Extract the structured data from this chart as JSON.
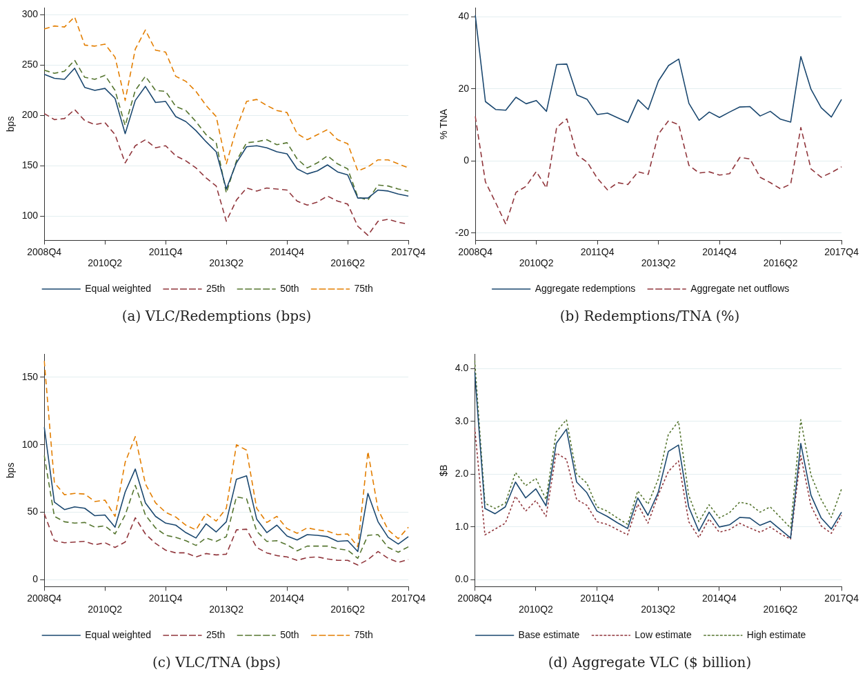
{
  "chart_data": [
    {
      "type": "line",
      "title": "(a) VLC/Redemptions (bps)",
      "ylabel": "bps",
      "categories": [
        "2008Q4",
        null,
        null,
        null,
        null,
        null,
        "2010Q2",
        null,
        null,
        null,
        null,
        null,
        "2011Q4",
        null,
        null,
        null,
        null,
        null,
        "2013Q2",
        null,
        null,
        null,
        null,
        null,
        "2014Q4",
        null,
        null,
        null,
        null,
        null,
        "2016Q2",
        null,
        null,
        null,
        null,
        null,
        "2017Q4"
      ],
      "ylim": [
        76,
        307
      ],
      "yticks": [
        100,
        150,
        200,
        250,
        300
      ],
      "grid": "y",
      "legend": "bottom",
      "marker": "none",
      "series": [
        {
          "name": "Equal weighted",
          "color": "#1a476f",
          "line_style": "solid",
          "values": [
            241,
            237,
            236,
            247,
            228,
            225,
            227,
            217,
            182,
            215,
            229,
            213,
            214,
            199,
            194,
            185,
            174,
            164,
            127,
            153,
            169,
            170,
            168,
            164,
            162,
            147,
            142,
            145,
            151,
            144,
            141,
            118,
            118,
            126,
            125,
            122,
            120
          ]
        },
        {
          "name": "25th",
          "color": "#90353b",
          "line_style": "dashed",
          "values": [
            202,
            196,
            197,
            206,
            195,
            191,
            193,
            181,
            153,
            170,
            176,
            168,
            170,
            160,
            155,
            148,
            138,
            130,
            95,
            116,
            128,
            125,
            128,
            127,
            126,
            115,
            111,
            114,
            120,
            115,
            112,
            90,
            81,
            95,
            97,
            94,
            92
          ]
        },
        {
          "name": "50th",
          "color": "#55752f",
          "line_style": "dashed",
          "values": [
            245,
            242,
            244,
            255,
            238,
            236,
            240,
            225,
            190,
            225,
            239,
            225,
            224,
            209,
            205,
            194,
            181,
            173,
            123,
            155,
            173,
            174,
            176,
            171,
            173,
            157,
            148,
            153,
            160,
            152,
            147,
            119,
            116,
            131,
            130,
            127,
            125
          ]
        },
        {
          "name": "75th",
          "color": "#e37e00",
          "line_style": "dashed",
          "values": [
            286,
            289,
            288,
            298,
            270,
            269,
            271,
            258,
            215,
            266,
            285,
            265,
            263,
            239,
            234,
            224,
            210,
            199,
            152,
            187,
            214,
            216,
            210,
            205,
            203,
            182,
            176,
            181,
            186,
            176,
            172,
            145,
            149,
            156,
            156,
            152,
            148
          ]
        }
      ]
    },
    {
      "type": "line",
      "title": "(b) Redemptions/TNA (%)",
      "ylabel": "% TNA",
      "categories": [
        "2008Q4",
        null,
        null,
        null,
        null,
        null,
        "2010Q2",
        null,
        null,
        null,
        null,
        null,
        "2011Q4",
        null,
        null,
        null,
        null,
        null,
        "2013Q2",
        null,
        null,
        null,
        null,
        null,
        "2014Q4",
        null,
        null,
        null,
        null,
        null,
        "2016Q2",
        null,
        null,
        null,
        null,
        null,
        "2017Q4"
      ],
      "ylim": [
        -22,
        42.5
      ],
      "yticks": [
        -20,
        0,
        20,
        40
      ],
      "grid": "y",
      "legend": "bottom",
      "marker": "none",
      "series": [
        {
          "name": "Aggregate redemptions",
          "color": "#1a476f",
          "line_style": "solid",
          "values": [
            40.5,
            16.5,
            14.3,
            14.1,
            17.7,
            15.9,
            16.8,
            13.8,
            26.8,
            26.9,
            18.3,
            17.1,
            12.9,
            13.3,
            12.0,
            10.7,
            17.0,
            14.3,
            22.2,
            26.5,
            28.3,
            16.0,
            11.3,
            13.6,
            12.1,
            13.6,
            15.0,
            15.1,
            12.5,
            13.8,
            11.6,
            10.8,
            29.0,
            19.9,
            14.8,
            12.2,
            17.1
          ]
        },
        {
          "name": "Aggregate net outflows",
          "color": "#90353b",
          "line_style": "dashed",
          "values": [
            12.4,
            -5.8,
            -11.5,
            -17.5,
            -8.7,
            -7.0,
            -2.9,
            -7.5,
            9.3,
            11.7,
            1.7,
            -0.3,
            -4.8,
            -8.0,
            -6.0,
            -6.5,
            -3.0,
            -3.7,
            7.5,
            11.2,
            10.1,
            -1.2,
            -3.3,
            -3.0,
            -3.9,
            -3.5,
            1.0,
            0.6,
            -4.5,
            -6.0,
            -7.7,
            -6.4,
            9.3,
            -2.2,
            -4.5,
            -3.2,
            -1.6
          ]
        }
      ]
    },
    {
      "type": "line",
      "title": "(c) VLC/TNA (bps)",
      "ylabel": "bps",
      "categories": [
        "2008Q4",
        null,
        null,
        null,
        null,
        null,
        "2010Q2",
        null,
        null,
        null,
        null,
        null,
        "2011Q4",
        null,
        null,
        null,
        null,
        null,
        "2013Q2",
        null,
        null,
        null,
        null,
        null,
        "2014Q4",
        null,
        null,
        null,
        null,
        null,
        "2016Q2",
        null,
        null,
        null,
        null,
        null,
        "2017Q4"
      ],
      "ylim": [
        -5,
        167
      ],
      "yticks": [
        0,
        50,
        100,
        150
      ],
      "grid": "y",
      "legend": "bottom",
      "marker": "none",
      "series": [
        {
          "name": "Equal weighted",
          "color": "#1a476f",
          "line_style": "solid",
          "values": [
            113,
            57.5,
            52,
            54,
            53,
            47.5,
            48,
            39,
            65,
            82,
            57,
            47,
            42,
            40.5,
            35,
            31,
            41.5,
            35.5,
            43,
            74.5,
            77,
            45,
            35,
            40.5,
            32.5,
            29.5,
            33.5,
            33,
            32,
            28.5,
            29,
            21,
            64,
            43,
            31.5,
            26.5,
            32
          ]
        },
        {
          "name": "25th",
          "color": "#90353b",
          "line_style": "dashed",
          "values": [
            49,
            29,
            27.5,
            28,
            28.5,
            26,
            27.5,
            24,
            28,
            46,
            34,
            27,
            22,
            20,
            20,
            17,
            19.5,
            18.5,
            19,
            37,
            37.5,
            24,
            20,
            18,
            17,
            14.5,
            16.5,
            17,
            15.5,
            14.5,
            14.5,
            11,
            15,
            21,
            16,
            13,
            15
          ]
        },
        {
          "name": "50th",
          "color": "#55752f",
          "line_style": "dashed",
          "values": [
            92,
            47,
            43,
            42,
            42.5,
            39,
            40,
            34,
            48,
            70,
            48,
            38.5,
            33,
            31.5,
            29,
            25.5,
            31,
            28.5,
            32,
            61.5,
            60,
            36,
            28.5,
            29,
            26,
            21.5,
            25,
            25,
            25,
            23,
            22,
            16,
            33,
            33.5,
            24,
            20.5,
            24.5
          ]
        },
        {
          "name": "75th",
          "color": "#e37e00",
          "line_style": "dashed",
          "values": [
            162,
            72,
            63,
            64,
            63.5,
            58,
            59,
            47,
            87,
            106,
            71,
            57,
            50,
            46.5,
            40.5,
            37,
            49,
            43.5,
            53,
            100,
            96,
            53,
            42.5,
            47,
            38,
            34.5,
            38.5,
            37,
            36,
            33.5,
            34,
            24.5,
            95,
            52,
            37,
            30.5,
            39
          ]
        }
      ]
    },
    {
      "type": "line",
      "title": "(d) Aggregate VLC ($ billion)",
      "ylabel": "$B",
      "categories": [
        "2008Q4",
        null,
        null,
        null,
        null,
        null,
        "2010Q2",
        null,
        null,
        null,
        null,
        null,
        "2011Q4",
        null,
        null,
        null,
        null,
        null,
        "2013Q2",
        null,
        null,
        null,
        null,
        null,
        "2014Q4",
        null,
        null,
        null,
        null,
        null,
        "2016Q2",
        null,
        null,
        null,
        null,
        null,
        "2017Q4"
      ],
      "ylim": [
        -0.13,
        4.27
      ],
      "yticks": [
        {
          "value": 0,
          "label": "0.0"
        },
        {
          "value": 1,
          "label": "1.0"
        },
        {
          "value": 2,
          "label": "2.0"
        },
        {
          "value": 3,
          "label": "3.0"
        },
        {
          "value": 4,
          "label": "4.0"
        }
      ],
      "grid": "y",
      "legend": "bottom",
      "marker": "none",
      "series": [
        {
          "name": "Base estimate",
          "color": "#1a476f",
          "line_style": "solid",
          "values": [
            3.93,
            1.35,
            1.25,
            1.38,
            1.85,
            1.55,
            1.72,
            1.4,
            2.58,
            2.85,
            1.85,
            1.65,
            1.3,
            1.2,
            1.08,
            0.97,
            1.55,
            1.22,
            1.65,
            2.43,
            2.55,
            1.38,
            0.92,
            1.28,
            1.0,
            1.04,
            1.18,
            1.17,
            1.03,
            1.11,
            0.95,
            0.79,
            2.58,
            1.6,
            1.17,
            0.96,
            1.28
          ]
        },
        {
          "name": "Low estimate",
          "color": "#90353b",
          "line_style": "dotted",
          "values": [
            2.88,
            0.85,
            0.96,
            1.07,
            1.58,
            1.3,
            1.5,
            1.2,
            2.4,
            2.28,
            1.52,
            1.41,
            1.1,
            1.05,
            0.95,
            0.85,
            1.43,
            1.07,
            1.6,
            2.05,
            2.25,
            1.1,
            0.8,
            1.15,
            0.9,
            0.95,
            1.07,
            0.98,
            0.9,
            1.0,
            0.87,
            0.77,
            2.35,
            1.4,
            1.02,
            0.88,
            1.22
          ]
        },
        {
          "name": "High estimate",
          "color": "#55752f",
          "line_style": "dotted",
          "values": [
            4.15,
            1.45,
            1.35,
            1.45,
            2.03,
            1.78,
            1.92,
            1.52,
            2.8,
            3.03,
            2.0,
            1.83,
            1.38,
            1.3,
            1.17,
            1.05,
            1.68,
            1.43,
            1.9,
            2.75,
            3.0,
            1.6,
            1.1,
            1.42,
            1.17,
            1.27,
            1.47,
            1.43,
            1.28,
            1.38,
            1.18,
            0.98,
            3.03,
            1.98,
            1.52,
            1.18,
            1.72
          ]
        }
      ]
    }
  ]
}
